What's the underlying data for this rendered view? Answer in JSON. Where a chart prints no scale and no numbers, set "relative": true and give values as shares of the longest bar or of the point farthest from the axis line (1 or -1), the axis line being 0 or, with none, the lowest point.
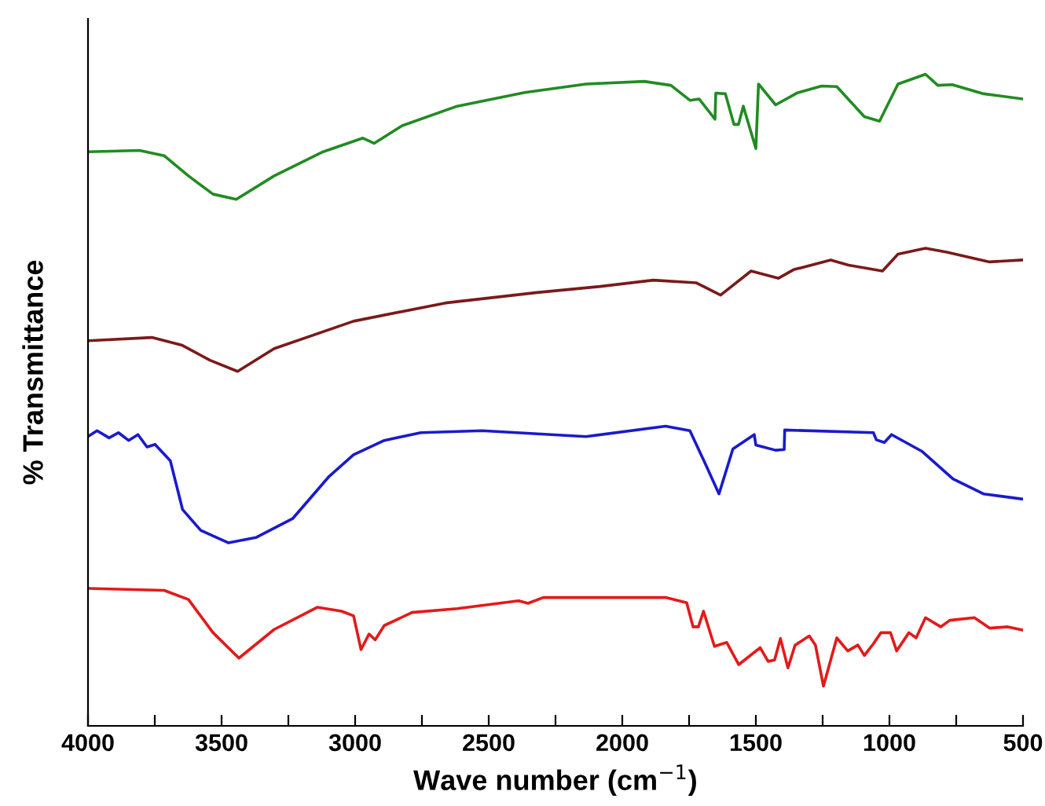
{
  "chart_data": {
    "type": "line",
    "relative": true,
    "xlabel": "Wave number (cm$^{−1}$)",
    "ylabel": "% Transmittance",
    "xlim": [
      4000,
      500
    ],
    "xticks": [
      4000,
      {
        "value": 3750,
        "label": null
      },
      3500,
      {
        "value": 3250,
        "label": null
      },
      3000,
      {
        "value": 2750,
        "label": null
      },
      2500,
      {
        "value": 2250,
        "label": null
      },
      2000,
      {
        "value": 1750,
        "label": null
      },
      1500,
      {
        "value": 1250,
        "label": null
      },
      1000,
      {
        "value": 750,
        "label": null
      },
      500
    ],
    "tick_labels": "x",
    "grid": false,
    "line_style": "solid",
    "marker": "none",
    "series": [
      {
        "color": "#228b22",
        "x": [
          4000,
          3807,
          3715,
          3624,
          3532,
          3445,
          3303,
          3120,
          2971,
          2929,
          2824,
          2618,
          2365,
          2136,
          1918,
          1818,
          1747,
          1712,
          1653,
          1650,
          1614,
          1582,
          1565,
          1547,
          1500,
          1490,
          1426,
          1347,
          1254,
          1197,
          1094,
          1037,
          968,
          865,
          819,
          765,
          647,
          500
        ],
        "values": [
          0.881,
          0.883,
          0.875,
          0.844,
          0.816,
          0.808,
          0.844,
          0.881,
          0.902,
          0.894,
          0.921,
          0.951,
          0.972,
          0.985,
          0.989,
          0.983,
          0.96,
          0.962,
          0.931,
          0.971,
          0.97,
          0.923,
          0.923,
          0.951,
          0.886,
          0.985,
          0.953,
          0.971,
          0.982,
          0.981,
          0.935,
          0.928,
          0.985,
          1.0,
          0.983,
          0.984,
          0.97,
          0.962
        ]
      },
      {
        "color": "#7b1a1a",
        "x": [
          4000,
          3761,
          3647,
          3543,
          3440,
          3303,
          3006,
          2662,
          2319,
          2090,
          1884,
          1724,
          1632,
          1518,
          1415,
          1359,
          1220,
          1153,
          1026,
          968,
          865,
          785,
          625,
          500
        ],
        "values": [
          0.591,
          0.596,
          0.584,
          0.561,
          0.544,
          0.579,
          0.621,
          0.649,
          0.665,
          0.674,
          0.684,
          0.68,
          0.661,
          0.698,
          0.687,
          0.7,
          0.715,
          0.707,
          0.698,
          0.724,
          0.733,
          0.727,
          0.712,
          0.715
        ]
      },
      {
        "color": "#1a1acd",
        "x": [
          4000,
          3966,
          3921,
          3886,
          3848,
          3813,
          3779,
          3749,
          3692,
          3646,
          3578,
          3475,
          3372,
          3234,
          3097,
          3006,
          2891,
          2754,
          2525,
          2136,
          1838,
          1747,
          1689,
          1638,
          1586,
          1506,
          1500,
          1426,
          1394,
          1392,
          1060,
          1049,
          1019,
          992,
          877,
          762,
          648,
          500
        ],
        "values": [
          0.444,
          0.453,
          0.442,
          0.45,
          0.438,
          0.447,
          0.428,
          0.432,
          0.407,
          0.332,
          0.3,
          0.281,
          0.289,
          0.318,
          0.383,
          0.416,
          0.438,
          0.45,
          0.453,
          0.444,
          0.46,
          0.453,
          0.402,
          0.356,
          0.425,
          0.447,
          0.431,
          0.423,
          0.424,
          0.454,
          0.45,
          0.439,
          0.435,
          0.447,
          0.421,
          0.379,
          0.356,
          0.348
        ]
      },
      {
        "color": "#e31a1a",
        "x": [
          4000,
          3715,
          3624,
          3532,
          3435,
          3303,
          3142,
          3051,
          3006,
          2978,
          2948,
          2925,
          2891,
          2787,
          2618,
          2388,
          2353,
          2296,
          1838,
          1759,
          1735,
          1715,
          1696,
          1655,
          1609,
          1564,
          1484,
          1454,
          1430,
          1408,
          1380,
          1353,
          1300,
          1277,
          1247,
          1197,
          1156,
          1118,
          1094,
          1060,
          1032,
          996,
          973,
          927,
          900,
          865,
          808,
          774,
          682,
          625,
          557,
          500
        ],
        "values": [
          0.211,
          0.208,
          0.194,
          0.143,
          0.104,
          0.148,
          0.182,
          0.176,
          0.169,
          0.117,
          0.141,
          0.132,
          0.154,
          0.174,
          0.18,
          0.192,
          0.188,
          0.197,
          0.197,
          0.189,
          0.152,
          0.152,
          0.176,
          0.122,
          0.128,
          0.094,
          0.12,
          0.099,
          0.101,
          0.134,
          0.089,
          0.124,
          0.138,
          0.124,
          0.061,
          0.135,
          0.115,
          0.124,
          0.108,
          0.126,
          0.143,
          0.143,
          0.115,
          0.143,
          0.135,
          0.166,
          0.152,
          0.162,
          0.166,
          0.15,
          0.152,
          0.147
        ]
      }
    ]
  }
}
